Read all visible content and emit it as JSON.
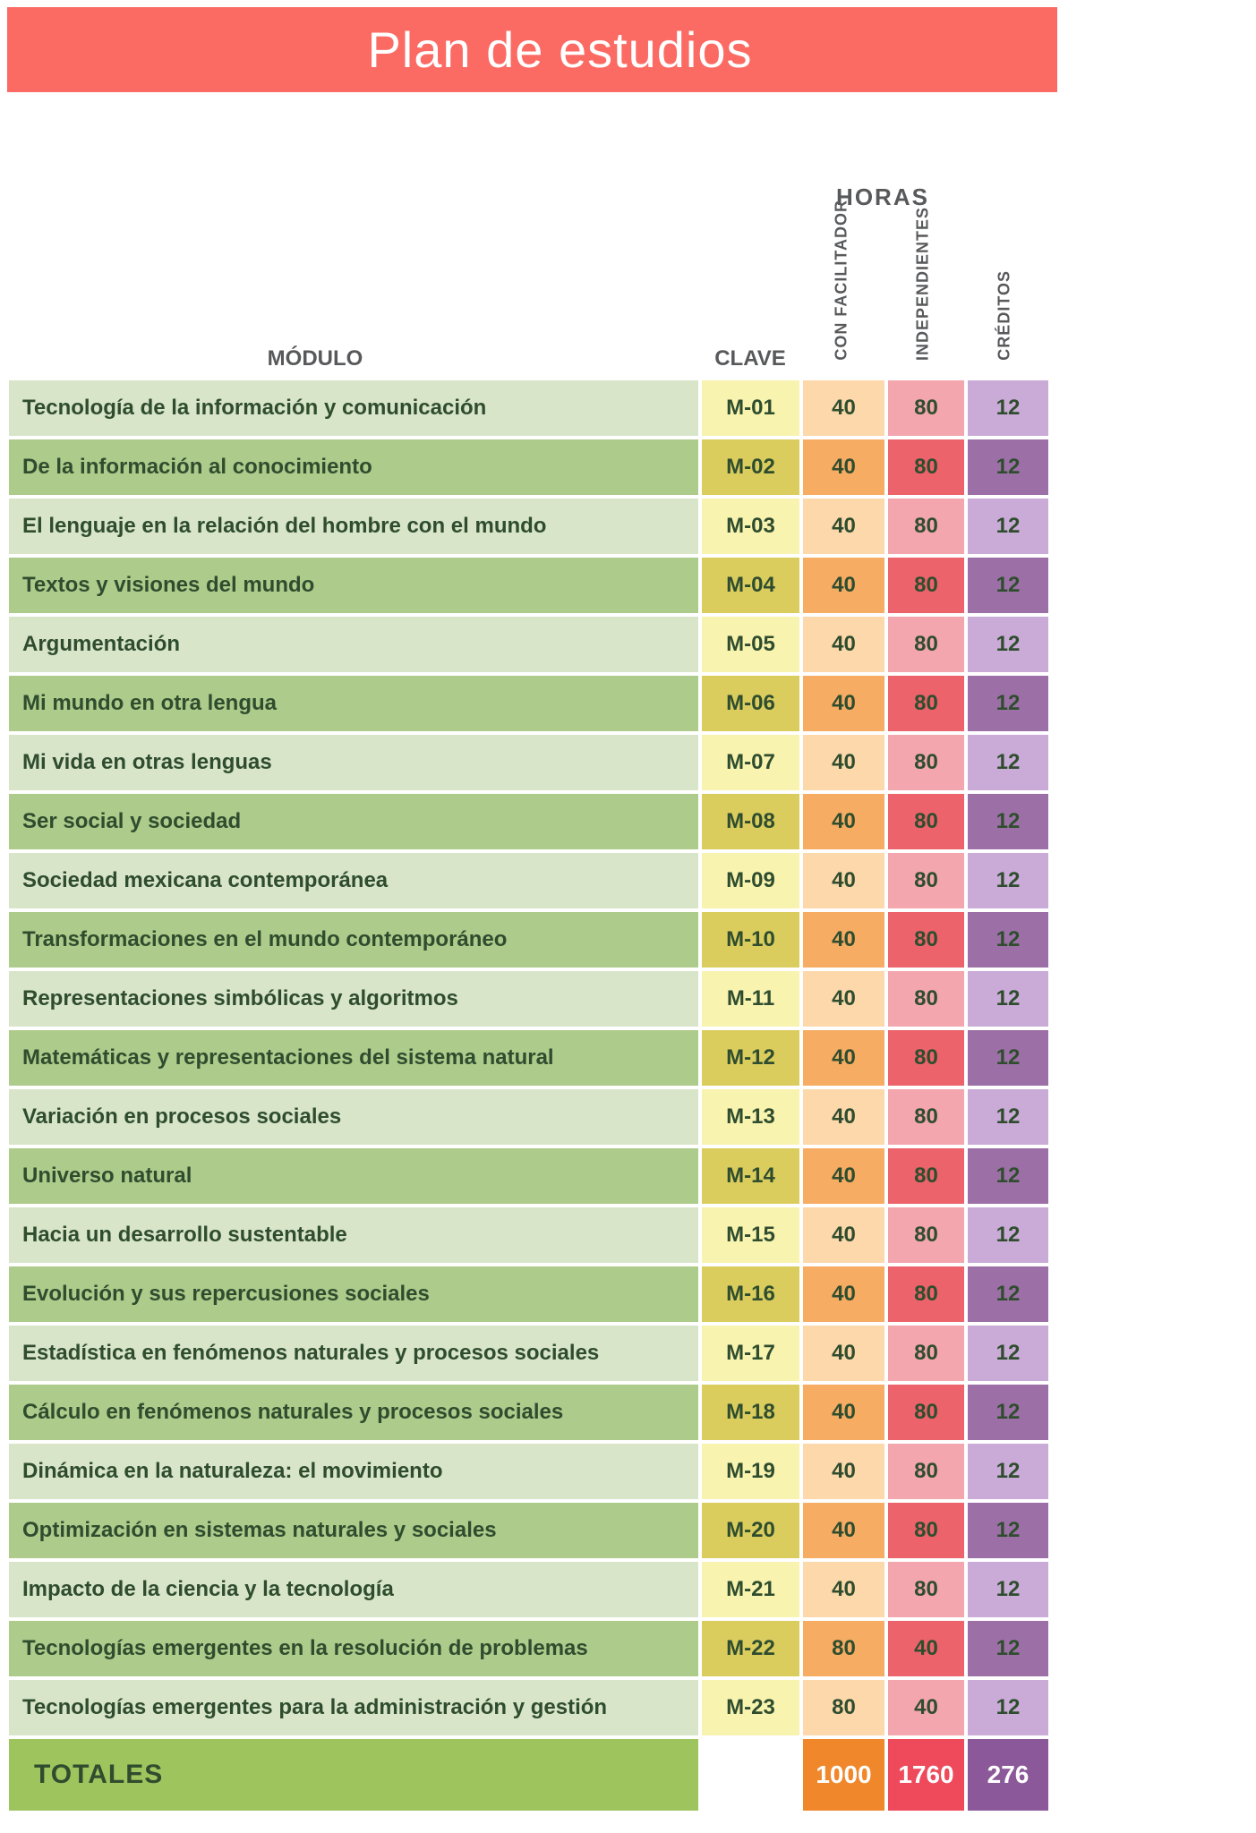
{
  "title": "Plan de estudios",
  "table": {
    "headers": {
      "modulo": "MÓDULO",
      "clave": "CLAVE",
      "horas": "HORAS",
      "con_facilitador": "CON FACILITADOR",
      "independientes": "INDEPENDIENTES",
      "creditos": "CRÉDITOS"
    },
    "rows": [
      {
        "modulo": "Tecnología de la información y comunicación",
        "clave": "M-01",
        "facilitador": "40",
        "independientes": "80",
        "creditos": "12"
      },
      {
        "modulo": "De la información al conocimiento",
        "clave": "M-02",
        "facilitador": "40",
        "independientes": "80",
        "creditos": "12"
      },
      {
        "modulo": "El lenguaje en la relación del hombre con el mundo",
        "clave": "M-03",
        "facilitador": "40",
        "independientes": "80",
        "creditos": "12"
      },
      {
        "modulo": "Textos y visiones del mundo",
        "clave": "M-04",
        "facilitador": "40",
        "independientes": "80",
        "creditos": "12"
      },
      {
        "modulo": "Argumentación",
        "clave": "M-05",
        "facilitador": "40",
        "independientes": "80",
        "creditos": "12"
      },
      {
        "modulo": "Mi mundo en otra lengua",
        "clave": "M-06",
        "facilitador": "40",
        "independientes": "80",
        "creditos": "12"
      },
      {
        "modulo": "Mi vida en otras lenguas",
        "clave": "M-07",
        "facilitador": "40",
        "independientes": "80",
        "creditos": "12"
      },
      {
        "modulo": "Ser social y sociedad",
        "clave": "M-08",
        "facilitador": "40",
        "independientes": "80",
        "creditos": "12"
      },
      {
        "modulo": "Sociedad mexicana contemporánea",
        "clave": "M-09",
        "facilitador": "40",
        "independientes": "80",
        "creditos": "12"
      },
      {
        "modulo": "Transformaciones en el mundo contemporáneo",
        "clave": "M-10",
        "facilitador": "40",
        "independientes": "80",
        "creditos": "12"
      },
      {
        "modulo": "Representaciones simbólicas y algoritmos",
        "clave": "M-11",
        "facilitador": "40",
        "independientes": "80",
        "creditos": "12"
      },
      {
        "modulo": "Matemáticas y representaciones del sistema natural",
        "clave": "M-12",
        "facilitador": "40",
        "independientes": "80",
        "creditos": "12"
      },
      {
        "modulo": "Variación en procesos sociales",
        "clave": "M-13",
        "facilitador": "40",
        "independientes": "80",
        "creditos": "12"
      },
      {
        "modulo": "Universo natural",
        "clave": "M-14",
        "facilitador": "40",
        "independientes": "80",
        "creditos": "12"
      },
      {
        "modulo": "Hacia un desarrollo sustentable",
        "clave": "M-15",
        "facilitador": "40",
        "independientes": "80",
        "creditos": "12"
      },
      {
        "modulo": "Evolución y sus repercusiones sociales",
        "clave": "M-16",
        "facilitador": "40",
        "independientes": "80",
        "creditos": "12"
      },
      {
        "modulo": "Estadística en fenómenos naturales y procesos sociales",
        "clave": "M-17",
        "facilitador": "40",
        "independientes": "80",
        "creditos": "12"
      },
      {
        "modulo": "Cálculo en fenómenos naturales y procesos sociales",
        "clave": "M-18",
        "facilitador": "40",
        "independientes": "80",
        "creditos": "12"
      },
      {
        "modulo": "Dinámica en la naturaleza: el movimiento",
        "clave": "M-19",
        "facilitador": "40",
        "independientes": "80",
        "creditos": "12"
      },
      {
        "modulo": "Optimización en sistemas naturales y sociales",
        "clave": "M-20",
        "facilitador": "40",
        "independientes": "80",
        "creditos": "12"
      },
      {
        "modulo": "Impacto de la ciencia y la tecnología",
        "clave": "M-21",
        "facilitador": "40",
        "independientes": "80",
        "creditos": "12"
      },
      {
        "modulo": "Tecnologías emergentes en la resolución de problemas",
        "clave": "M-22",
        "facilitador": "80",
        "independientes": "40",
        "creditos": "12"
      },
      {
        "modulo": "Tecnologías emergentes para la administración y gestión",
        "clave": "M-23",
        "facilitador": "80",
        "independientes": "40",
        "creditos": "12"
      }
    ],
    "totals": {
      "label": "TOTALES",
      "facilitador": "1000",
      "independientes": "1760",
      "creditos": "276"
    }
  },
  "colors": {
    "title-bar": "#FB6A63",
    "header-text": "#58595B",
    "cell-text": "#2F4D2E",
    "light-green": "#D8E5C9",
    "dark-green": "#ADCB8B",
    "light-yellow": "#F9F3B0",
    "dark-yellow": "#DACD5E",
    "light-orange": "#FCD8AB",
    "dark-orange": "#F6AC63",
    "light-pink": "#F4A6AE",
    "dark-pink": "#EC636B",
    "light-purple": "#CAABD8",
    "dark-purple": "#9C70A7",
    "totals-green": "#9EC45E",
    "totals-orange": "#F0872B",
    "totals-red": "#EE4A5B",
    "totals-purple": "#8B5899"
  }
}
